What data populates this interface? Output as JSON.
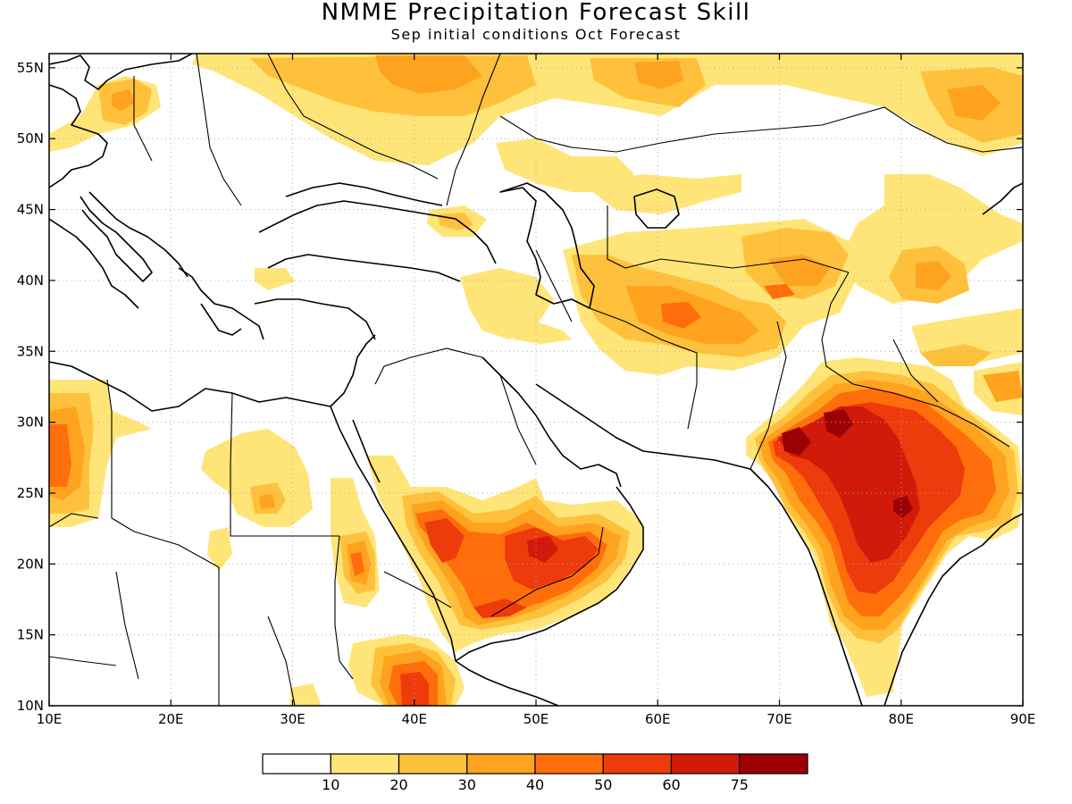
{
  "title": "NMME Precipitation Forecast Skill",
  "subtitle": "Sep initial conditions  Oct Forecast",
  "map": {
    "lon_range": [
      10,
      90
    ],
    "lat_range": [
      10,
      56
    ],
    "x_ticks": [
      "10E",
      "20E",
      "30E",
      "40E",
      "50E",
      "60E",
      "70E",
      "80E",
      "90E"
    ],
    "y_ticks": [
      "10N",
      "15N",
      "20N",
      "25N",
      "30N",
      "35N",
      "40N",
      "45N",
      "50N",
      "55N"
    ],
    "gridlines": "dotted"
  },
  "colorbar": {
    "colors": [
      "#ffffff",
      "#ffe578",
      "#ffc13c",
      "#ffa31e",
      "#ff6e0a",
      "#ee3b0b",
      "#d11a0a",
      "#9c0205"
    ],
    "labels": [
      "10",
      "20",
      "30",
      "40",
      "50",
      "60",
      "75"
    ]
  }
}
